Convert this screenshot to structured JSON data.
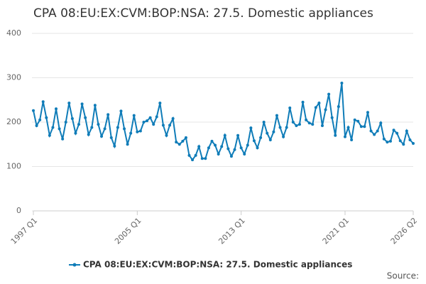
{
  "chart_data": {
    "type": "line",
    "title": "CPA 08:EU:EX:CVM:BOP:NSA: 27.5. Domestic appliances",
    "source": "Source:",
    "categories": [
      "1997 Q1",
      null,
      null,
      null,
      null,
      null,
      null,
      null,
      null,
      null,
      null,
      null,
      null,
      null,
      null,
      null,
      null,
      null,
      null,
      null,
      null,
      null,
      null,
      null,
      null,
      null,
      null,
      null,
      null,
      null,
      null,
      null,
      "2005 Q1",
      null,
      null,
      null,
      null,
      null,
      null,
      null,
      null,
      null,
      null,
      null,
      null,
      null,
      null,
      null,
      null,
      null,
      null,
      null,
      null,
      null,
      null,
      null,
      null,
      null,
      null,
      null,
      null,
      null,
      null,
      null,
      "2013 Q1",
      null,
      null,
      null,
      null,
      null,
      null,
      null,
      null,
      null,
      null,
      null,
      null,
      null,
      null,
      null,
      null,
      null,
      null,
      null,
      null,
      null,
      null,
      null,
      null,
      null,
      null,
      null,
      null,
      null,
      null,
      null,
      "2021 Q1",
      null,
      null,
      null,
      null,
      null,
      null,
      null,
      null,
      null,
      null,
      null,
      null,
      null,
      null,
      null,
      null,
      null,
      null,
      null,
      null,
      "2026 Q2"
    ],
    "series": [
      {
        "name": "CPA 08:EU:EX:CVM:BOP:NSA: 27.5. Domestic appliances",
        "color": "#0f7cb8",
        "values": [
          226,
          192,
          205,
          246,
          210,
          170,
          188,
          230,
          185,
          162,
          200,
          243,
          208,
          175,
          195,
          241,
          210,
          172,
          188,
          238,
          195,
          168,
          185,
          217,
          165,
          146,
          188,
          225,
          185,
          150,
          175,
          215,
          178,
          180,
          200,
          203,
          210,
          195,
          212,
          243,
          193,
          170,
          193,
          208,
          155,
          150,
          157,
          165,
          125,
          115,
          125,
          145,
          118,
          118,
          142,
          157,
          148,
          128,
          145,
          170,
          140,
          123,
          138,
          170,
          142,
          128,
          148,
          187,
          158,
          142,
          165,
          200,
          175,
          160,
          178,
          215,
          188,
          167,
          188,
          232,
          200,
          192,
          195,
          245,
          205,
          198,
          195,
          233,
          243,
          192,
          228,
          263,
          210,
          170,
          235,
          288,
          167,
          188,
          160,
          205,
          202,
          190,
          190,
          222,
          180,
          172,
          180,
          198,
          162,
          155,
          157,
          182,
          175,
          158,
          150,
          180,
          160,
          152
        ]
      }
    ],
    "ylim": [
      0,
      400
    ],
    "yticks": [
      0,
      100,
      200,
      300,
      400
    ],
    "grid": true
  }
}
